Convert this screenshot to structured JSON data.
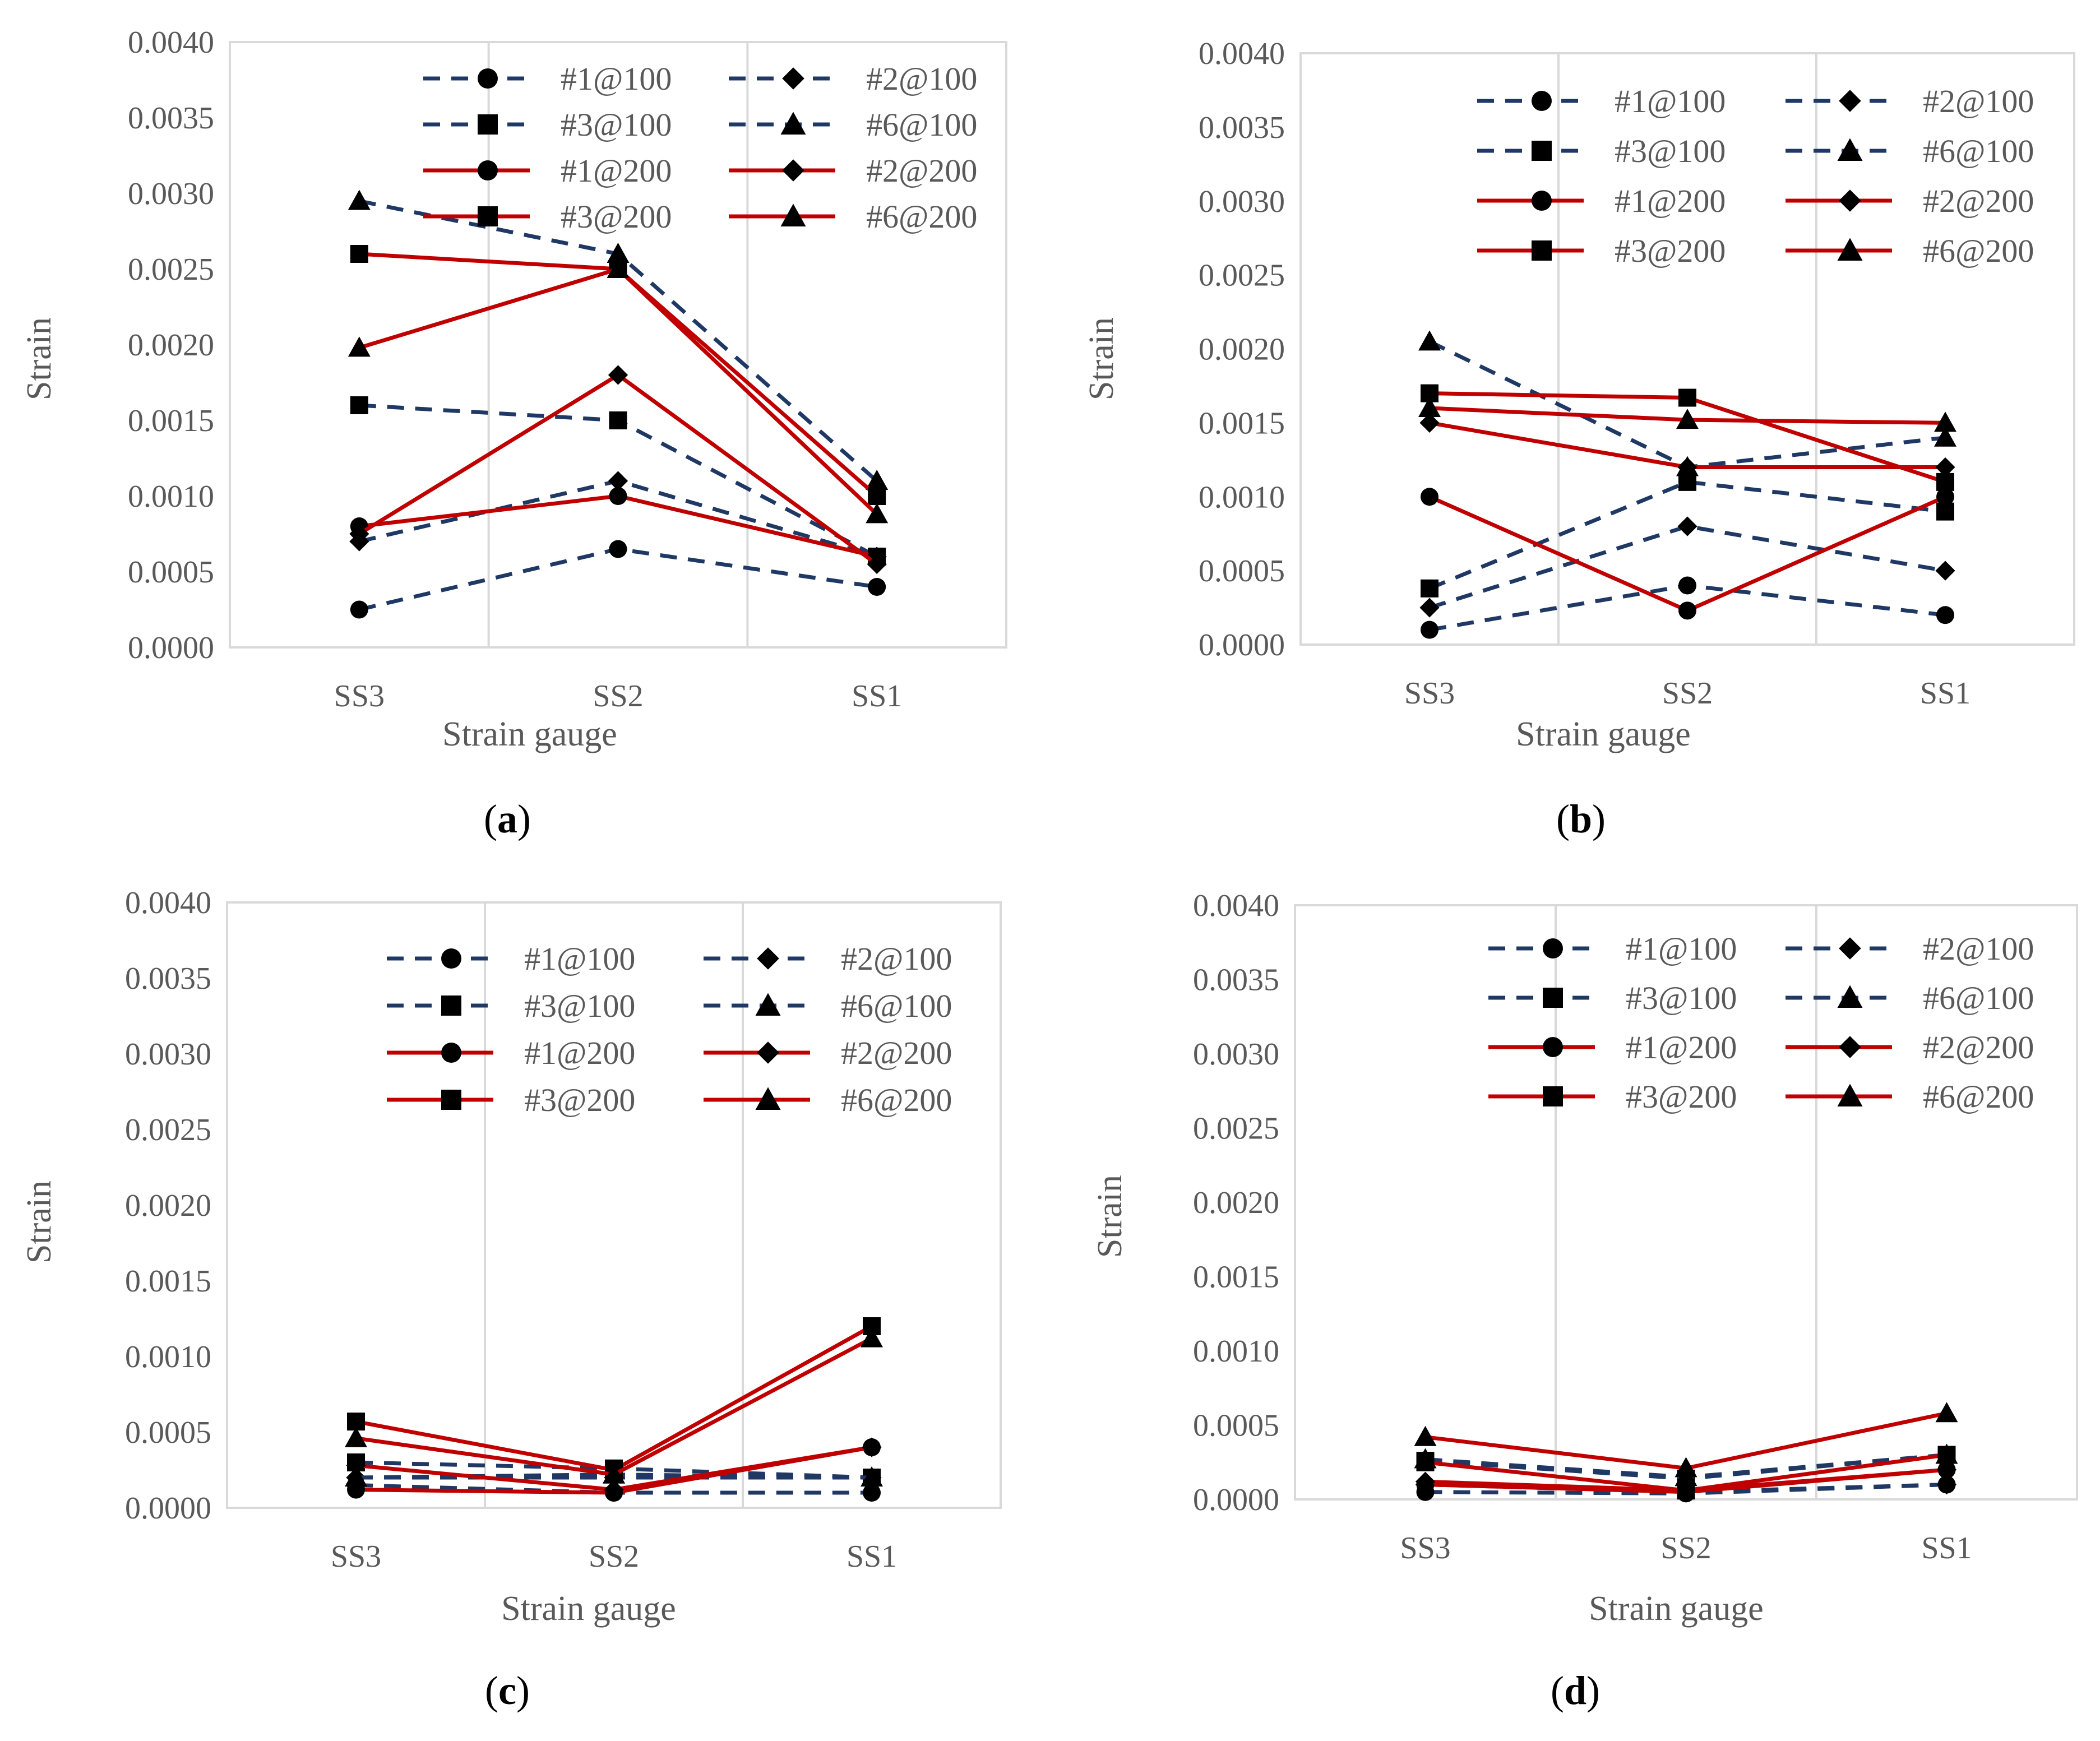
{
  "chart_data": [
    {
      "type": "line",
      "panel_label": "a",
      "xlabel": "Strain gauge",
      "ylabel": "Strain",
      "categories": [
        "SS3",
        "SS2",
        "SS1"
      ],
      "yticks": [
        "0.0000",
        "0.0005",
        "0.0010",
        "0.0015",
        "0.0020",
        "0.0025",
        "0.0030",
        "0.0035",
        "0.0040"
      ],
      "ylim": [
        0,
        0.004
      ],
      "grid": "vertical",
      "legend_position": "top-right",
      "series": [
        {
          "name": "#1@100",
          "values": [
            0.00025,
            0.00065,
            0.0004
          ],
          "style": "dashed",
          "color": "#1f3864",
          "marker": "circle"
        },
        {
          "name": "#2@100",
          "values": [
            0.0007,
            0.0011,
            0.0006
          ],
          "style": "dashed",
          "color": "#1f3864",
          "marker": "diamond"
        },
        {
          "name": "#3@100",
          "values": [
            0.0016,
            0.0015,
            0.0006
          ],
          "style": "dashed",
          "color": "#1f3864",
          "marker": "square"
        },
        {
          "name": "#6@100",
          "values": [
            0.00295,
            0.0026,
            0.0011
          ],
          "style": "dashed",
          "color": "#1f3864",
          "marker": "triangle"
        },
        {
          "name": "#1@200",
          "values": [
            0.0008,
            0.001,
            0.0006
          ],
          "style": "solid",
          "color": "#c00000",
          "marker": "circle"
        },
        {
          "name": "#2@200",
          "values": [
            0.00075,
            0.0018,
            0.00055
          ],
          "style": "solid",
          "color": "#c00000",
          "marker": "diamond"
        },
        {
          "name": "#3@200",
          "values": [
            0.0026,
            0.0025,
            0.001
          ],
          "style": "solid",
          "color": "#c00000",
          "marker": "square"
        },
        {
          "name": "#6@200",
          "values": [
            0.00198,
            0.0025,
            0.00088
          ],
          "style": "solid",
          "color": "#c00000",
          "marker": "triangle"
        }
      ]
    },
    {
      "type": "line",
      "panel_label": "b",
      "xlabel": "Strain gauge",
      "ylabel": "Strain",
      "categories": [
        "SS3",
        "SS2",
        "SS1"
      ],
      "yticks": [
        "0.0000",
        "0.0005",
        "0.0010",
        "0.0015",
        "0.0020",
        "0.0025",
        "0.0030",
        "0.0035",
        "0.0040"
      ],
      "ylim": [
        0,
        0.004
      ],
      "grid": "vertical",
      "legend_position": "top-right",
      "series": [
        {
          "name": "#1@100",
          "values": [
            0.0001,
            0.0004,
            0.0002
          ],
          "style": "dashed",
          "color": "#1f3864",
          "marker": "circle"
        },
        {
          "name": "#2@100",
          "values": [
            0.00025,
            0.0008,
            0.0005
          ],
          "style": "dashed",
          "color": "#1f3864",
          "marker": "diamond"
        },
        {
          "name": "#3@100",
          "values": [
            0.00038,
            0.0011,
            0.0009
          ],
          "style": "dashed",
          "color": "#1f3864",
          "marker": "square"
        },
        {
          "name": "#6@100",
          "values": [
            0.00205,
            0.0012,
            0.0014
          ],
          "style": "dashed",
          "color": "#1f3864",
          "marker": "triangle"
        },
        {
          "name": "#1@200",
          "values": [
            0.001,
            0.00023,
            0.001
          ],
          "style": "solid",
          "color": "#c00000",
          "marker": "circle"
        },
        {
          "name": "#2@200",
          "values": [
            0.0015,
            0.0012,
            0.0012
          ],
          "style": "solid",
          "color": "#c00000",
          "marker": "diamond"
        },
        {
          "name": "#3@200",
          "values": [
            0.0017,
            0.00167,
            0.0011
          ],
          "style": "solid",
          "color": "#c00000",
          "marker": "square"
        },
        {
          "name": "#6@200",
          "values": [
            0.0016,
            0.00152,
            0.0015
          ],
          "style": "solid",
          "color": "#c00000",
          "marker": "triangle"
        }
      ]
    },
    {
      "type": "line",
      "panel_label": "c",
      "xlabel": "Strain gauge",
      "ylabel": "Strain",
      "categories": [
        "SS3",
        "SS2",
        "SS1"
      ],
      "yticks": [
        "0.0000",
        "0.0005",
        "0.0010",
        "0.0015",
        "0.0020",
        "0.0025",
        "0.0030",
        "0.0035",
        "0.0040"
      ],
      "ylim": [
        0,
        0.004
      ],
      "grid": "vertical",
      "legend_position": "top-right",
      "series": [
        {
          "name": "#1@100",
          "values": [
            0.00015,
            0.0001,
            0.0001
          ],
          "style": "dashed",
          "color": "#1f3864",
          "marker": "circle"
        },
        {
          "name": "#2@100",
          "values": [
            0.0002,
            0.0002,
            0.0002
          ],
          "style": "dashed",
          "color": "#1f3864",
          "marker": "diamond"
        },
        {
          "name": "#3@100",
          "values": [
            0.0003,
            0.00026,
            0.0002
          ],
          "style": "dashed",
          "color": "#1f3864",
          "marker": "square"
        },
        {
          "name": "#6@100",
          "values": [
            0.0002,
            0.00022,
            0.0002
          ],
          "style": "dashed",
          "color": "#1f3864",
          "marker": "triangle"
        },
        {
          "name": "#1@200",
          "values": [
            0.00012,
            0.0001,
            0.0004
          ],
          "style": "solid",
          "color": "#c00000",
          "marker": "circle"
        },
        {
          "name": "#2@200",
          "values": [
            0.00028,
            0.00012,
            0.0004
          ],
          "style": "solid",
          "color": "#c00000",
          "marker": "diamond"
        },
        {
          "name": "#3@200",
          "values": [
            0.00057,
            0.00025,
            0.0012
          ],
          "style": "solid",
          "color": "#c00000",
          "marker": "square"
        },
        {
          "name": "#6@200",
          "values": [
            0.00046,
            0.00022,
            0.00112
          ],
          "style": "solid",
          "color": "#c00000",
          "marker": "triangle"
        }
      ]
    },
    {
      "type": "line",
      "panel_label": "d",
      "xlabel": "Strain gauge",
      "ylabel": "Strain",
      "categories": [
        "SS3",
        "SS2",
        "SS1"
      ],
      "yticks": [
        "0.0000",
        "0.0005",
        "0.0010",
        "0.0015",
        "0.0020",
        "0.0025",
        "0.0030",
        "0.0035",
        "0.0040"
      ],
      "ylim": [
        0,
        0.004
      ],
      "grid": "vertical",
      "legend_position": "top-right",
      "series": [
        {
          "name": "#1@100",
          "values": [
            5e-05,
            4e-05,
            0.0001
          ],
          "style": "dashed",
          "color": "#1f3864",
          "marker": "circle"
        },
        {
          "name": "#2@100",
          "values": [
            0.0001,
            5e-05,
            0.0001
          ],
          "style": "dashed",
          "color": "#1f3864",
          "marker": "diamond"
        },
        {
          "name": "#3@100",
          "values": [
            0.00026,
            0.00014,
            0.0003
          ],
          "style": "dashed",
          "color": "#1f3864",
          "marker": "square"
        },
        {
          "name": "#6@100",
          "values": [
            0.00027,
            0.00015,
            0.0003
          ],
          "style": "dashed",
          "color": "#1f3864",
          "marker": "triangle"
        },
        {
          "name": "#1@200",
          "values": [
            0.0001,
            5e-05,
            0.0002
          ],
          "style": "solid",
          "color": "#c00000",
          "marker": "circle"
        },
        {
          "name": "#2@200",
          "values": [
            0.00012,
            6e-05,
            0.0002
          ],
          "style": "solid",
          "color": "#c00000",
          "marker": "diamond"
        },
        {
          "name": "#3@200",
          "values": [
            0.00025,
            6e-05,
            0.0003
          ],
          "style": "solid",
          "color": "#c00000",
          "marker": "square"
        },
        {
          "name": "#6@200",
          "values": [
            0.00042,
            0.00021,
            0.00058
          ],
          "style": "solid",
          "color": "#c00000",
          "marker": "triangle"
        }
      ]
    }
  ]
}
